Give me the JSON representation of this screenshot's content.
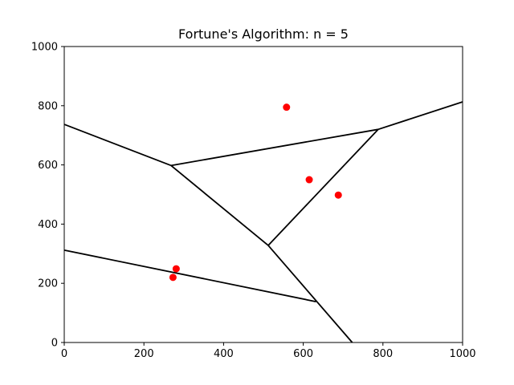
{
  "chart_data": {
    "type": "scatter",
    "title": "Fortune's Algorithm: n = 5",
    "xlabel": "",
    "ylabel": "",
    "xlim": [
      0,
      1000
    ],
    "ylim": [
      0,
      1000
    ],
    "xticks": [
      0,
      200,
      400,
      600,
      800,
      1000
    ],
    "yticks": [
      0,
      200,
      400,
      600,
      800,
      1000
    ],
    "grid": false,
    "colors": {
      "points": "#ff0000",
      "edges": "#000000",
      "frame": "#000000"
    },
    "points": [
      {
        "x": 558,
        "y": 795
      },
      {
        "x": 615,
        "y": 550
      },
      {
        "x": 688,
        "y": 498
      },
      {
        "x": 281,
        "y": 249
      },
      {
        "x": 273,
        "y": 220
      }
    ],
    "vertices": [
      {
        "x": 268,
        "y": 598
      },
      {
        "x": 788,
        "y": 720
      },
      {
        "x": 512,
        "y": 328
      },
      {
        "x": 632,
        "y": 138
      }
    ],
    "edges": [
      {
        "from": [
          0,
          737
        ],
        "to": [
          268,
          598
        ]
      },
      {
        "from": [
          268,
          598
        ],
        "to": [
          788,
          720
        ]
      },
      {
        "from": [
          788,
          720
        ],
        "to": [
          1000,
          813
        ]
      },
      {
        "from": [
          268,
          598
        ],
        "to": [
          512,
          328
        ]
      },
      {
        "from": [
          512,
          328
        ],
        "to": [
          788,
          720
        ]
      },
      {
        "from": [
          512,
          328
        ],
        "to": [
          723,
          0
        ]
      },
      {
        "from": [
          0,
          312
        ],
        "to": [
          632,
          138
        ]
      }
    ]
  }
}
